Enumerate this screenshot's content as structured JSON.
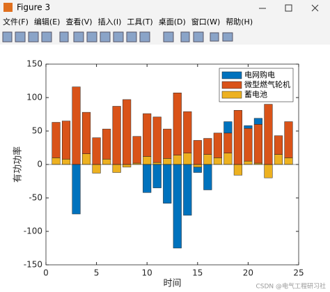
{
  "window": {
    "title": "Figure 3",
    "menus": [
      "文件(F)",
      "编辑(E)",
      "查看(V)",
      "插入(I)",
      "工具(T)",
      "桌面(D)",
      "窗口(W)",
      "帮助(H)"
    ]
  },
  "chart_data": {
    "type": "bar",
    "stacked": true,
    "xlabel": "时间",
    "ylabel": "有功功率",
    "x": [
      1,
      2,
      3,
      4,
      5,
      6,
      7,
      8,
      9,
      10,
      11,
      12,
      13,
      14,
      15,
      16,
      17,
      18,
      19,
      20,
      21,
      22,
      23,
      24
    ],
    "series": [
      {
        "name": "电网购电",
        "color": "#0072bd",
        "values": [
          0,
          0,
          -74,
          0,
          0,
          0,
          0,
          0,
          0,
          -42,
          -35,
          -58,
          -125,
          -76,
          -8,
          -38,
          0,
          17,
          0,
          4,
          9,
          0,
          0,
          0
        ]
      },
      {
        "name": "微型燃气轮机",
        "color": "#d95319",
        "values": [
          53,
          57,
          116,
          62,
          40,
          45,
          87,
          97,
          40,
          64,
          68,
          44,
          93,
          62,
          36,
          24,
          37,
          30,
          81,
          49,
          58,
          90,
          28,
          54
        ]
      },
      {
        "name": "蓄电池",
        "color": "#edb120",
        "values": [
          10,
          8,
          0,
          16,
          -13,
          8,
          -12,
          -4,
          2,
          12,
          3,
          9,
          14,
          17,
          -4,
          15,
          10,
          17,
          -16,
          5,
          2,
          -20,
          15,
          10
        ]
      }
    ],
    "xlim": [
      0,
      25
    ],
    "xticks": [
      0,
      5,
      10,
      15,
      20,
      25
    ],
    "ylim": [
      -150,
      150
    ],
    "yticks": [
      -150,
      -100,
      -50,
      0,
      50,
      100,
      150
    ],
    "legend": "northeast"
  },
  "watermark": "CSDN @电气工程研习社"
}
